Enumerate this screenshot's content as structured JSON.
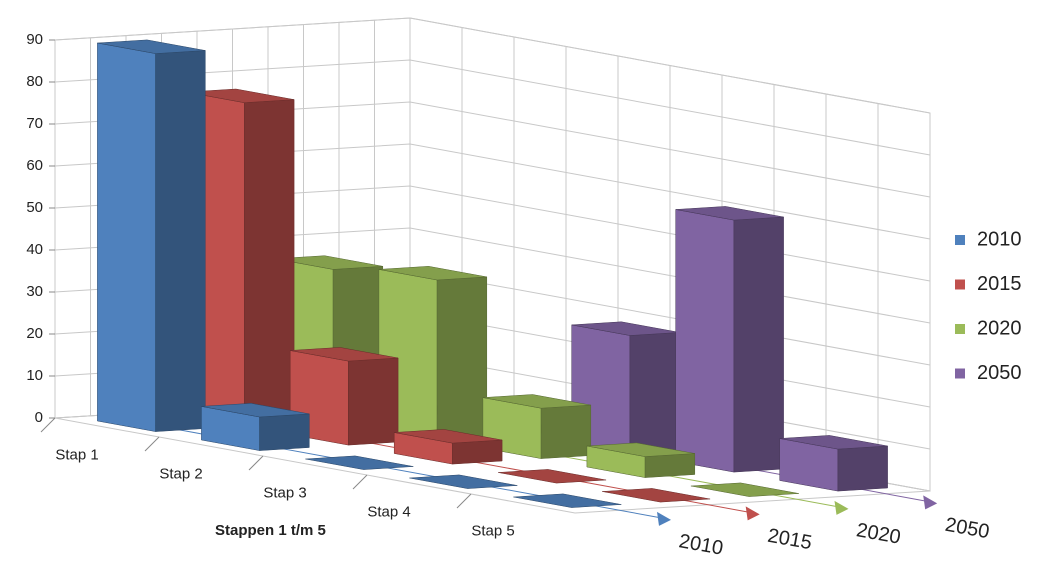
{
  "chart_data": {
    "type": "bar3d",
    "x_label": "Stappen 1 t/m 5",
    "categories": [
      "Stap 1",
      "Stap 2",
      "Stap 3",
      "Stap 4",
      "Stap 5"
    ],
    "series": [
      {
        "name": "2010",
        "color": "#4f81bd",
        "values": [
          90,
          8,
          0,
          0,
          0
        ]
      },
      {
        "name": "2015",
        "color": "#c0504d",
        "values": [
          77,
          20,
          5,
          0,
          0
        ]
      },
      {
        "name": "2020",
        "color": "#9bbb59",
        "values": [
          36,
          38,
          12,
          5,
          0
        ]
      },
      {
        "name": "2050",
        "color": "#8064a2",
        "values": [
          0,
          0,
          28,
          60,
          10
        ]
      }
    ],
    "ylim": [
      0,
      90
    ],
    "yticks": [
      0,
      10,
      20,
      30,
      40,
      50,
      60,
      70,
      80,
      90
    ],
    "grid": true,
    "legend": "right"
  }
}
